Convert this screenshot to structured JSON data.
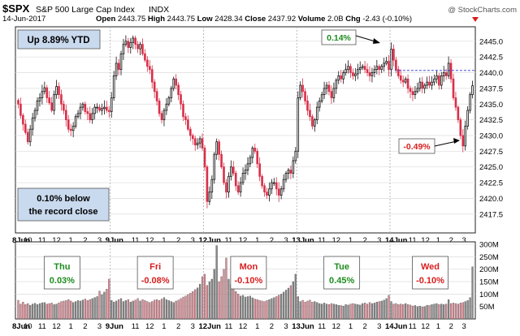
{
  "header": {
    "symbol": "$SPX",
    "name": "S&P 500 Large Cap Index",
    "exchange": "INDX",
    "date": "14-Jun-2017",
    "watermark": "@ StockCharts.com",
    "ohlc": [
      {
        "label": "Open",
        "value": "2443.75"
      },
      {
        "label": "High",
        "value": "2443.75"
      },
      {
        "label": "Low",
        "value": "2428.34"
      },
      {
        "label": "Close",
        "value": "2437.92"
      },
      {
        "label": "Volume",
        "value": "2.0B"
      },
      {
        "label": "Chg",
        "value": "-2.43 (-0.10%)"
      }
    ]
  },
  "annotations": {
    "ytd": "Up 8.89% YTD",
    "record_line1": "0.10% below",
    "record_line2": "the record close",
    "pct_high": "0.14%",
    "pct_low": "-0.49%"
  },
  "day_labels": [
    {
      "day": "Thu",
      "pct": "0.03%",
      "color": "#1e8c1e"
    },
    {
      "day": "Fri",
      "pct": "-0.08%",
      "color": "#d81e1e"
    },
    {
      "day": "Mon",
      "pct": "-0.10%",
      "color": "#d81e1e"
    },
    {
      "day": "Tue",
      "pct": "0.45%",
      "color": "#1e8c1e"
    },
    {
      "day": "Wed",
      "pct": "-0.10%",
      "color": "#d81e1e"
    }
  ],
  "colors": {
    "up": "#111111",
    "down": "#d9304a",
    "vol_up": "#8a8a8a",
    "vol_down": "#e88a96",
    "record_line": "#2233cc"
  },
  "chart_data": {
    "type": "candlestick",
    "interval": "10-minute",
    "price_axis": {
      "ticks": [
        2417.5,
        2420.0,
        2422.5,
        2425.0,
        2427.5,
        2430.0,
        2432.5,
        2435.0,
        2437.5,
        2440.0,
        2442.5,
        2445.0
      ],
      "labels": [
        "2417.5",
        "2420.0",
        "2422.5",
        "2425.0",
        "2427.5",
        "2430.0",
        "2432.5",
        "2435.0",
        "2437.5",
        "2440.0",
        "2442.5",
        "2445.0"
      ],
      "range": [
        2414.5,
        2447.3
      ],
      "side": "right"
    },
    "volume_axis": {
      "ticks": [
        50,
        100,
        150,
        200,
        250,
        300
      ],
      "labels": [
        "50M",
        "100M",
        "150M",
        "200M",
        "250M",
        "300M"
      ],
      "range": [
        0,
        310
      ],
      "side": "right"
    },
    "record_close": 2440.35,
    "days": [
      "8Jun",
      "9Jun",
      "12Jun",
      "13Jun",
      "14Jun"
    ],
    "hour_labels": [
      "10",
      "11",
      "12",
      "1",
      "2",
      "3"
    ],
    "time_labels": [
      "8Jun",
      "10",
      "11",
      "12",
      "1",
      "2",
      "3",
      "9Jun",
      "11",
      "12",
      "1",
      "2",
      "3",
      "12Jun",
      "11",
      "12",
      "1",
      "2",
      "3",
      "13Jun",
      "11",
      "12",
      "1",
      "2",
      "3",
      "14Jun",
      "11",
      "12",
      "1",
      "2",
      "3"
    ],
    "closes": [
      [
        2435.0,
        2433.2,
        2431.8,
        2430.5,
        2429.0,
        2431.0,
        2432.8,
        2434.0,
        2435.5,
        2436.0,
        2437.0,
        2437.6,
        2436.0,
        2435.2,
        2434.0,
        2436.5,
        2437.8,
        2436.5,
        2435.0,
        2434.0,
        2432.5,
        2431.0,
        2430.8,
        2431.5,
        2433.0,
        2433.5,
        2434.5,
        2435.0,
        2433.8,
        2433.5,
        2432.5,
        2433.5,
        2434.5,
        2434.5,
        2434.0,
        2434.3,
        2434.5,
        2434.0,
        2433.8
      ],
      [
        2436.0,
        2439.5,
        2441.5,
        2440.5,
        2443.0,
        2444.5,
        2445.0,
        2444.0,
        2444.8,
        2445.5,
        2444.5,
        2443.8,
        2444.5,
        2443.0,
        2442.0,
        2441.0,
        2440.5,
        2438.5,
        2437.0,
        2435.5,
        2433.5,
        2432.5,
        2434.0,
        2435.0,
        2436.0,
        2437.5,
        2439.0,
        2438.0,
        2436.5,
        2435.0,
        2433.0,
        2432.5,
        2431.0,
        2430.0,
        2429.5,
        2428.5,
        2428.8,
        2429.5,
        2428.0
      ],
      [
        2425.0,
        2419.5,
        2421.0,
        2423.0,
        2427.0,
        2429.0,
        2427.0,
        2425.0,
        2422.5,
        2421.0,
        2423.5,
        2425.0,
        2424.0,
        2422.0,
        2421.0,
        2422.5,
        2424.0,
        2424.5,
        2425.5,
        2426.5,
        2428.0,
        2427.5,
        2425.5,
        2423.5,
        2422.0,
        2421.0,
        2420.5,
        2421.5,
        2422.5,
        2422.5,
        2421.5,
        2420.5,
        2421.5,
        2423.0,
        2424.0,
        2424.5,
        2424.0,
        2426.0,
        2427.5
      ],
      [
        2436.0,
        2438.0,
        2437.0,
        2435.5,
        2434.0,
        2433.0,
        2431.5,
        2432.5,
        2434.5,
        2435.5,
        2436.5,
        2437.5,
        2438.0,
        2437.0,
        2436.0,
        2437.5,
        2438.8,
        2439.5,
        2439.0,
        2440.0,
        2440.5,
        2441.0,
        2440.0,
        2439.5,
        2439.8,
        2440.5,
        2440.8,
        2441.0,
        2440.5,
        2440.0,
        2439.5,
        2440.0,
        2440.5,
        2441.0,
        2440.5,
        2441.0,
        2441.5,
        2441.8,
        2440.5
      ],
      [
        2443.75,
        2442.0,
        2440.5,
        2439.5,
        2438.8,
        2438.5,
        2439.0,
        2437.5,
        2437.0,
        2436.5,
        2437.0,
        2437.5,
        2438.5,
        2437.5,
        2438.0,
        2438.5,
        2438.0,
        2438.5,
        2439.0,
        2439.5,
        2438.0,
        2439.5,
        2440.0,
        2439.5,
        2441.5,
        2439.0,
        2436.0,
        2434.5,
        2432.5,
        2430.0,
        2428.34,
        2431.5,
        2434.0,
        2436.5,
        2437.92
      ]
    ],
    "volume_millions": [
      [
        75,
        60,
        68,
        58,
        62,
        55,
        60,
        63,
        58,
        62,
        65,
        66,
        60,
        62,
        64,
        58,
        60,
        65,
        70,
        72,
        74,
        78,
        72,
        66,
        70,
        74,
        72,
        76,
        80,
        74,
        78,
        82,
        86,
        90,
        112,
        98,
        108,
        120,
        160
      ],
      [
        75,
        68,
        72,
        78,
        82,
        70,
        74,
        78,
        68,
        72,
        76,
        82,
        72,
        78,
        74,
        70,
        66,
        70,
        76,
        78,
        74,
        80,
        86,
        78,
        74,
        70,
        66,
        72,
        76,
        82,
        88,
        92,
        98,
        104,
        110,
        118,
        125,
        140,
        170
      ],
      [
        180,
        135,
        150,
        160,
        200,
        295,
        150,
        170,
        200,
        245,
        160,
        140,
        120,
        110,
        100,
        92,
        95,
        88,
        90,
        92,
        85,
        80,
        78,
        74,
        72,
        70,
        74,
        78,
        82,
        86,
        90,
        96,
        100,
        108,
        116,
        124,
        134,
        150,
        180
      ],
      [
        90,
        70,
        75,
        68,
        72,
        76,
        68,
        70,
        66,
        62,
        60,
        64,
        60,
        58,
        62,
        60,
        58,
        55,
        54,
        52,
        58,
        56,
        60,
        62,
        60,
        58,
        56,
        62,
        64,
        60,
        66,
        62,
        64,
        68,
        70,
        72,
        76,
        82,
        95
      ],
      [
        70,
        60,
        62,
        58,
        60,
        58,
        62,
        58,
        56,
        52,
        54,
        50,
        52,
        48,
        50,
        55,
        54,
        58,
        60,
        62,
        58,
        60,
        58,
        60,
        78,
        62,
        64,
        62,
        60,
        64,
        66,
        70,
        74,
        86,
        210
      ]
    ]
  }
}
